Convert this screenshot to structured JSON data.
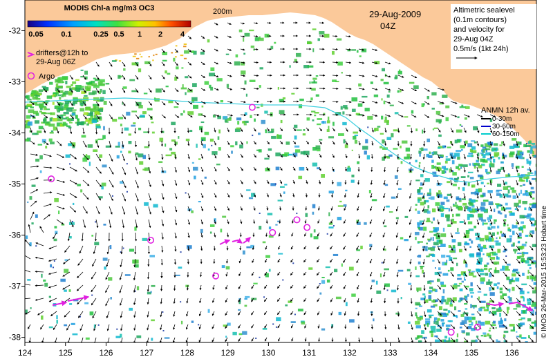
{
  "colorbar": {
    "title": "MODIS Chl-a mg/m3 OC3",
    "labels": [
      "0.05",
      "0.1",
      "0.25",
      "0.5",
      "1",
      "2",
      "4"
    ]
  },
  "isobath_label": "200m",
  "date": {
    "day": "29-Aug-2009",
    "time": "04Z"
  },
  "altimetry_note": {
    "lines": [
      "Altimetric sealevel",
      "(0.1m contours)",
      "and velocity for",
      "29-Aug 04Z",
      "0.5m/s (1kt 24h)"
    ]
  },
  "drifters_legend": {
    "line1": "drifters@12h to",
    "line2": "29-Aug 06Z"
  },
  "argo_legend": "Argo",
  "anmn_legend": {
    "title": "ANMN 12h av.",
    "items": [
      {
        "label": "0-30m",
        "color": "#000000"
      },
      {
        "label": "30-60m",
        "color": "#0000cc"
      },
      {
        "label": "60-150m",
        "color": "#00cccc"
      }
    ]
  },
  "axes": {
    "lon": {
      "min": 124,
      "max": 136.6,
      "ticks": [
        124,
        125,
        126,
        127,
        128,
        129,
        130,
        131,
        132,
        133,
        134,
        135,
        136
      ]
    },
    "lat": {
      "min": -38.1,
      "max": -31.4,
      "ticks": [
        -32,
        -33,
        -34,
        -35,
        -36,
        -37,
        -38
      ]
    }
  },
  "argo_floats": [
    {
      "lon": 129.6,
      "lat": -33.5
    },
    {
      "lon": 127.1,
      "lat": -36.1
    },
    {
      "lon": 130.1,
      "lat": -35.95
    },
    {
      "lon": 130.7,
      "lat": -35.7
    },
    {
      "lon": 130.95,
      "lat": -35.85
    },
    {
      "lon": 128.7,
      "lat": -36.8
    },
    {
      "lon": 134.5,
      "lat": -37.9
    },
    {
      "lon": 124.65,
      "lat": -34.9
    },
    {
      "lon": 135.15,
      "lat": -37.8
    }
  ],
  "copyright": "© IMOS 26-Mar-2015 15:53:23 Hobart time",
  "colors": {
    "land": "#fbc99a",
    "sea": "#ffffff",
    "isobath": "#40d0e0",
    "drifter": "#e020e0"
  }
}
